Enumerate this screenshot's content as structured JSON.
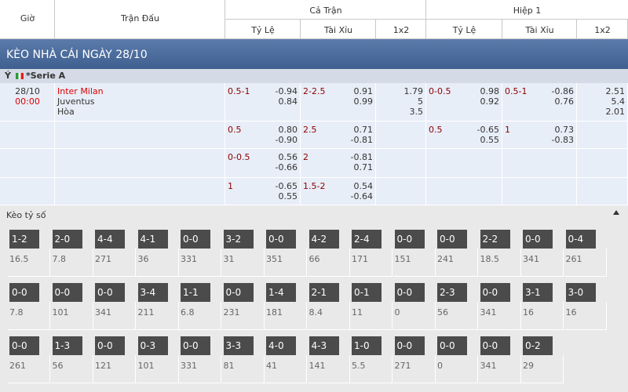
{
  "header": {
    "time": "Giờ",
    "match": "Trận Đấu",
    "full_time": "Cả Trận",
    "first_half": "Hiệp 1",
    "sub": [
      "Tỷ Lệ",
      "Tài Xỉu",
      "1x2",
      "Tỷ Lệ",
      "Tài Xỉu",
      "1x2"
    ]
  },
  "title": "KÈO NHÀ CÁI NGÀY 28/10",
  "league": {
    "country": "Ý",
    "name": "*Serie A"
  },
  "match": {
    "date": "28/10",
    "time": "00:00",
    "home": "Inter Milan",
    "away": "Juventus",
    "draw": "Hòa"
  },
  "rows": [
    {
      "ft_hdp": {
        "line": "0.5-1",
        "odds": [
          "-0.94",
          "0.84"
        ]
      },
      "ft_ou": {
        "line": "2-2.5",
        "odds": [
          "0.91",
          "0.99"
        ]
      },
      "ft_1x2": [
        "1.79",
        "5",
        "3.5"
      ],
      "h1_hdp": {
        "line": "0-0.5",
        "odds": [
          "0.98",
          "0.92"
        ]
      },
      "h1_ou": {
        "line": "0.5-1",
        "odds": [
          "-0.86",
          "0.76"
        ]
      },
      "h1_1x2": [
        "2.51",
        "5.4",
        "2.01"
      ]
    },
    {
      "ft_hdp": {
        "line": "0.5",
        "odds": [
          "0.80",
          "-0.90"
        ]
      },
      "ft_ou": {
        "line": "2.5",
        "odds": [
          "0.71",
          "-0.81"
        ]
      },
      "h1_hdp": {
        "line": "0.5",
        "odds": [
          "-0.65",
          "0.55"
        ]
      },
      "h1_ou": {
        "line": "1",
        "odds": [
          "0.73",
          "-0.83"
        ]
      }
    },
    {
      "ft_hdp": {
        "line": "0-0.5",
        "odds": [
          "0.56",
          "-0.66"
        ]
      },
      "ft_ou": {
        "line": "2",
        "odds": [
          "-0.81",
          "0.71"
        ]
      }
    },
    {
      "ft_hdp": {
        "line": "1",
        "odds": [
          "-0.65",
          "0.55"
        ]
      },
      "ft_ou": {
        "line": "1.5-2",
        "odds": [
          "0.54",
          "-0.64"
        ]
      }
    }
  ],
  "correct_score": {
    "title": "Kèo tỷ số",
    "rows": [
      [
        {
          "score": "1-2",
          "odds": "16.5"
        },
        {
          "score": "2-0",
          "odds": "7.8"
        },
        {
          "score": "4-4",
          "odds": "271"
        },
        {
          "score": "4-1",
          "odds": "36"
        },
        {
          "score": "0-0",
          "odds": "331"
        },
        {
          "score": "3-2",
          "odds": "31"
        },
        {
          "score": "0-0",
          "odds": "351"
        },
        {
          "score": "4-2",
          "odds": "66"
        },
        {
          "score": "2-4",
          "odds": "171"
        },
        {
          "score": "0-0",
          "odds": "151"
        },
        {
          "score": "0-0",
          "odds": "241"
        },
        {
          "score": "2-2",
          "odds": "18.5"
        },
        {
          "score": "0-0",
          "odds": "341"
        },
        {
          "score": "0-4",
          "odds": "261"
        }
      ],
      [
        {
          "score": "0-0",
          "odds": "7.8"
        },
        {
          "score": "0-0",
          "odds": "101"
        },
        {
          "score": "0-0",
          "odds": "341"
        },
        {
          "score": "3-4",
          "odds": "211"
        },
        {
          "score": "1-1",
          "odds": "6.8"
        },
        {
          "score": "0-0",
          "odds": "231"
        },
        {
          "score": "1-4",
          "odds": "181"
        },
        {
          "score": "2-1",
          "odds": "8.4"
        },
        {
          "score": "0-1",
          "odds": "11"
        },
        {
          "score": "0-0",
          "odds": "0"
        },
        {
          "score": "2-3",
          "odds": "56"
        },
        {
          "score": "0-0",
          "odds": "341"
        },
        {
          "score": "3-1",
          "odds": "16"
        },
        {
          "score": "3-0",
          "odds": "16"
        }
      ],
      [
        {
          "score": "0-0",
          "odds": "261"
        },
        {
          "score": "1-3",
          "odds": "56"
        },
        {
          "score": "0-0",
          "odds": "121"
        },
        {
          "score": "0-3",
          "odds": "101"
        },
        {
          "score": "0-0",
          "odds": "331"
        },
        {
          "score": "3-3",
          "odds": "81"
        },
        {
          "score": "4-0",
          "odds": "41"
        },
        {
          "score": "4-3",
          "odds": "141"
        },
        {
          "score": "1-0",
          "odds": "5.5"
        },
        {
          "score": "0-0",
          "odds": "271"
        },
        {
          "score": "0-0",
          "odds": "0"
        },
        {
          "score": "0-0",
          "odds": "341"
        },
        {
          "score": "0-2",
          "odds": "29"
        }
      ]
    ]
  }
}
